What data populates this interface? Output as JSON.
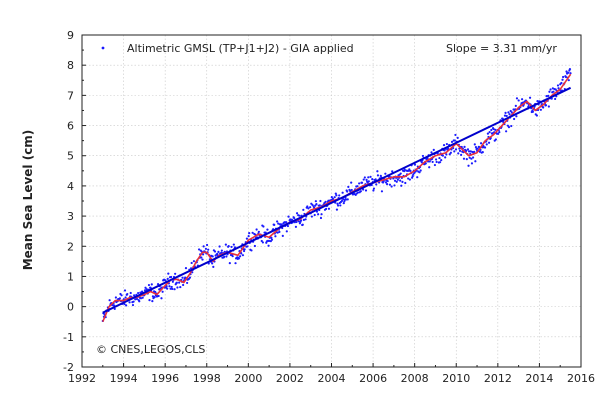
{
  "chart_data": {
    "type": "scatter",
    "legend_label": "Altimetric GMSL (TP+J1+J2) - GIA applied",
    "slope_label": "Slope = 3.31 mm/yr",
    "credit": "© CNES,LEGOS,CLS",
    "xlabel": "",
    "ylabel": "Mean Sea Level (cm)",
    "xlim": [
      1992,
      2016
    ],
    "ylim": [
      -2,
      9
    ],
    "x_ticks": [
      "1992",
      "1994",
      "1996",
      "1998",
      "2000",
      "2002",
      "2004",
      "2006",
      "2008",
      "2010",
      "2012",
      "2014",
      "2016"
    ],
    "y_ticks": [
      "-2",
      "-1",
      "0",
      "1",
      "2",
      "3",
      "4",
      "5",
      "6",
      "7",
      "8",
      "9"
    ],
    "grid": true,
    "legend_position": "top-left",
    "colors": {
      "points": "#1a1aff",
      "smoothed": "#e8303a",
      "trend": "#0000cc",
      "grid": "#c8c8c8"
    },
    "series": [
      {
        "name": "Altimetric GMSL (TP+J1+J2) - GIA applied",
        "kind": "smoothed",
        "x": [
          1993.0,
          1993.3,
          1993.6,
          1994.0,
          1994.3,
          1994.6,
          1995.0,
          1995.3,
          1995.6,
          1996.0,
          1996.3,
          1996.6,
          1996.9,
          1997.2,
          1997.5,
          1997.8,
          1998.0,
          1998.3,
          1998.6,
          1999.0,
          1999.5,
          2000.0,
          2000.5,
          2001.0,
          2001.5,
          2002.0,
          2002.5,
          2003.0,
          2003.5,
          2004.0,
          2004.5,
          2005.0,
          2005.5,
          2006.0,
          2006.5,
          2007.0,
          2007.5,
          2008.0,
          2008.5,
          2009.0,
          2009.5,
          2010.0,
          2010.3,
          2010.6,
          2011.0,
          2011.4,
          2011.8,
          2012.2,
          2012.6,
          2013.0,
          2013.4,
          2013.8,
          2014.2,
          2014.6,
          2015.0,
          2015.3,
          2015.5
        ],
        "y": [
          -0.5,
          0.0,
          0.2,
          0.2,
          0.3,
          0.3,
          0.4,
          0.5,
          0.4,
          0.7,
          0.9,
          0.9,
          0.8,
          1.1,
          1.5,
          1.8,
          1.8,
          1.5,
          1.7,
          1.8,
          1.7,
          2.2,
          2.4,
          2.3,
          2.6,
          2.8,
          2.9,
          3.2,
          3.3,
          3.5,
          3.6,
          3.8,
          4.0,
          4.1,
          4.2,
          4.3,
          4.3,
          4.5,
          4.8,
          5.0,
          5.1,
          5.4,
          5.2,
          5.0,
          5.1,
          5.5,
          5.7,
          6.0,
          6.3,
          6.6,
          6.8,
          6.5,
          6.7,
          7.0,
          7.2,
          7.5,
          7.7
        ]
      },
      {
        "name": "Slope = 3.31 mm/yr",
        "kind": "trend",
        "x": [
          1993.0,
          2015.5
        ],
        "y": [
          -0.2,
          7.25
        ]
      }
    ]
  }
}
